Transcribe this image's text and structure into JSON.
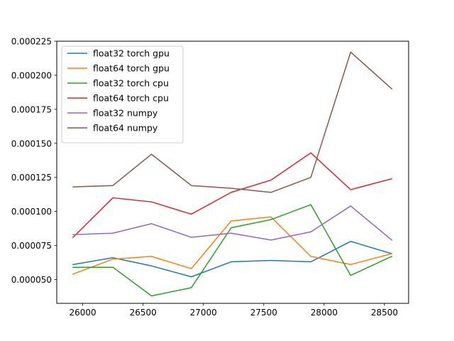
{
  "chart_data": {
    "type": "line",
    "title": "",
    "xlabel": "",
    "ylabel": "",
    "grid": false,
    "legend_position": "top-left",
    "xlim": [
      25785,
      28700
    ],
    "ylim": [
      3.25e-05,
      0.000225
    ],
    "x_ticks": [
      26000,
      26500,
      27000,
      27500,
      28000,
      28500
    ],
    "x_tick_labels": [
      "26000",
      "26500",
      "27000",
      "27500",
      "28000",
      "28500"
    ],
    "y_ticks": [
      5e-05,
      7.5e-05,
      0.0001,
      0.000125,
      0.00015,
      0.000175,
      0.0002,
      0.000225
    ],
    "y_tick_labels": [
      "0.000050",
      "0.000075",
      "0.000100",
      "0.000125",
      "0.000150",
      "0.000175",
      "0.000200",
      "0.000225"
    ],
    "x": [
      25920,
      26250,
      26570,
      26900,
      27230,
      27560,
      27890,
      28220,
      28560
    ],
    "series": [
      {
        "name": "float32 torch gpu",
        "color": "#1f77b4",
        "values": [
          6.1e-05,
          6.6e-05,
          6e-05,
          5.2e-05,
          6.3e-05,
          6.4e-05,
          6.3e-05,
          7.8e-05,
          6.9e-05
        ]
      },
      {
        "name": "float64 torch gpu",
        "color": "#ff7f0e",
        "values": [
          5.4e-05,
          6.5e-05,
          6.7e-05,
          5.8e-05,
          9.3e-05,
          9.6e-05,
          6.7e-05,
          6.1e-05,
          6.9e-05
        ]
      },
      {
        "name": "float32 torch cpu",
        "color": "#2ca02c",
        "values": [
          5.9e-05,
          5.9e-05,
          3.8e-05,
          4.4e-05,
          8.8e-05,
          9.4e-05,
          0.000105,
          5.3e-05,
          6.7e-05
        ]
      },
      {
        "name": "float64 torch cpu",
        "color": "#d62728",
        "values": [
          8.1e-05,
          0.00011,
          0.000107,
          9.8e-05,
          0.000114,
          0.000123,
          0.000143,
          0.000116,
          0.000124
        ]
      },
      {
        "name": "float32 numpy",
        "color": "#9467bd",
        "values": [
          8.3e-05,
          8.4e-05,
          9.1e-05,
          8.1e-05,
          8.4e-05,
          7.9e-05,
          8.5e-05,
          0.000104,
          7.9e-05
        ]
      },
      {
        "name": "float64 numpy",
        "color": "#8c564b",
        "values": [
          0.000118,
          0.000119,
          0.000142,
          0.000119,
          0.000117,
          0.000114,
          0.000125,
          0.000217,
          0.00019
        ]
      }
    ]
  }
}
